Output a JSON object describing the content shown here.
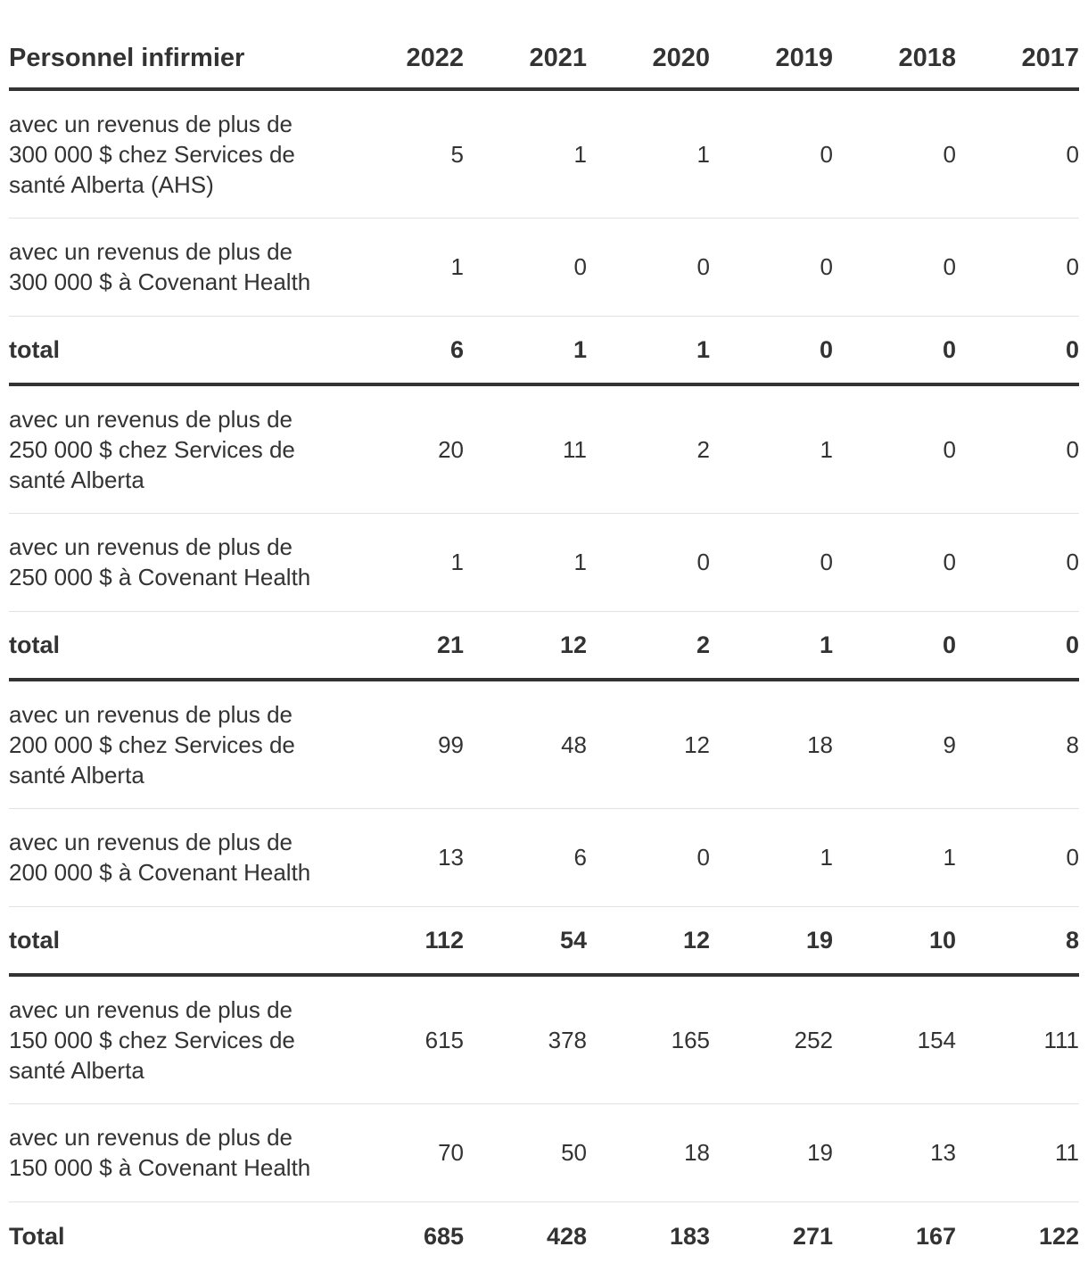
{
  "table": {
    "header": {
      "label": "Personnel infirmier",
      "years": [
        "2022",
        "2021",
        "2020",
        "2019",
        "2018",
        "2017"
      ]
    },
    "groups": [
      {
        "rows": [
          {
            "label": "avec un revenus de plus de 300 000 $ chez Services de santé Alberta (AHS)",
            "values": [
              "5",
              "1",
              "1",
              "0",
              "0",
              "0"
            ]
          },
          {
            "label": "avec un revenus de plus de 300 000 $ à Covenant Health",
            "values": [
              "1",
              "0",
              "0",
              "0",
              "0",
              "0"
            ]
          }
        ],
        "total": {
          "label": "total",
          "values": [
            "6",
            "1",
            "1",
            "0",
            "0",
            "0"
          ]
        }
      },
      {
        "rows": [
          {
            "label": "avec un revenus de plus de 250 000 $ chez Services de santé Alberta",
            "values": [
              "20",
              "11",
              "2",
              "1",
              "0",
              "0"
            ]
          },
          {
            "label": "avec un revenus de plus de 250 000 $ à Covenant Health",
            "values": [
              "1",
              "1",
              "0",
              "0",
              "0",
              "0"
            ]
          }
        ],
        "total": {
          "label": "total",
          "values": [
            "21",
            "12",
            "2",
            "1",
            "0",
            "0"
          ]
        }
      },
      {
        "rows": [
          {
            "label": "avec un revenus de plus de 200 000 $ chez Services de santé Alberta",
            "values": [
              "99",
              "48",
              "12",
              "18",
              "9",
              "8"
            ]
          },
          {
            "label": "avec un revenus de plus de 200 000 $ à Covenant Health",
            "values": [
              "13",
              "6",
              "0",
              "1",
              "1",
              "0"
            ]
          }
        ],
        "total": {
          "label": "total",
          "values": [
            "112",
            "54",
            "12",
            "19",
            "10",
            "8"
          ]
        }
      },
      {
        "rows": [
          {
            "label": "avec un revenus de plus de 150 000 $ chez Services de santé Alberta",
            "values": [
              "615",
              "378",
              "165",
              "252",
              "154",
              "111"
            ]
          },
          {
            "label": "avec un revenus de plus de 150 000 $ à Covenant Health",
            "values": [
              "70",
              "50",
              "18",
              "19",
              "13",
              "11"
            ]
          }
        ],
        "total": {
          "label": "Total",
          "values": [
            "685",
            "428",
            "183",
            "271",
            "167",
            "122"
          ]
        }
      }
    ]
  }
}
